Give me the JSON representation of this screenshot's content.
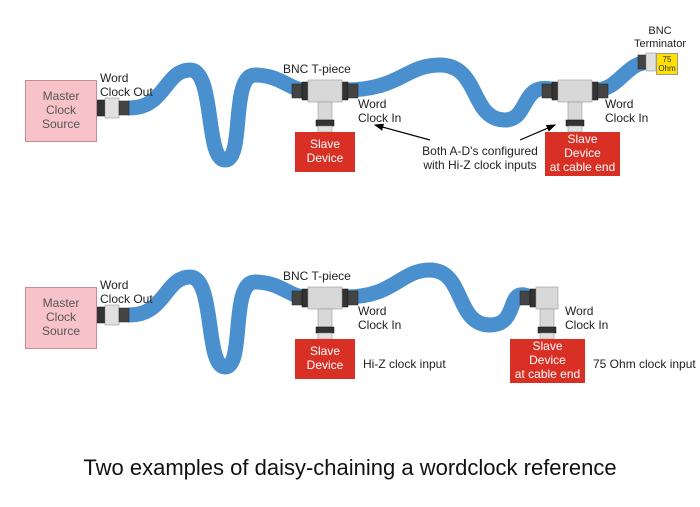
{
  "title": "Two examples of daisy-chaining a wordclock reference",
  "colors": {
    "cable": "#4a8fce",
    "master_fill": "#f7c3c9",
    "master_border": "#c98b93",
    "slave_fill": "#d93025",
    "slave_text": "#ffffff",
    "terminator_fill": "#ffe000",
    "background": "#ffffff",
    "text": "#222222",
    "title_fontsize": 22,
    "label_fontsize": 12
  },
  "diagrams": [
    {
      "id": "top",
      "master": {
        "label": "Master\nClock\nSource"
      },
      "master_out_label": "Word\nClock Out",
      "t_piece_label": "BNC T-piece",
      "slaves": [
        {
          "label": "Slave\nDevice",
          "in_label": "Word\nClock In"
        },
        {
          "label": "Slave\nDevice\nat cable end",
          "in_label": "Word\nClock In"
        }
      ],
      "terminator": {
        "top_label": "BNC\nTerminator",
        "body_label": "75\nOhm"
      },
      "center_note": "Both A-D's configured\nwith Hi-Z clock inputs"
    },
    {
      "id": "bottom",
      "master": {
        "label": "Master\nClock\nSource"
      },
      "master_out_label": "Word\nClock Out",
      "t_piece_label": "BNC T-piece",
      "slaves": [
        {
          "label": "Slave\nDevice",
          "in_label": "Word\nClock In",
          "note": "Hi-Z clock input"
        },
        {
          "label": "Slave\nDevice\nat cable end",
          "in_label": "Word\nClock In",
          "note": "75 Ohm clock input"
        }
      ]
    }
  ]
}
